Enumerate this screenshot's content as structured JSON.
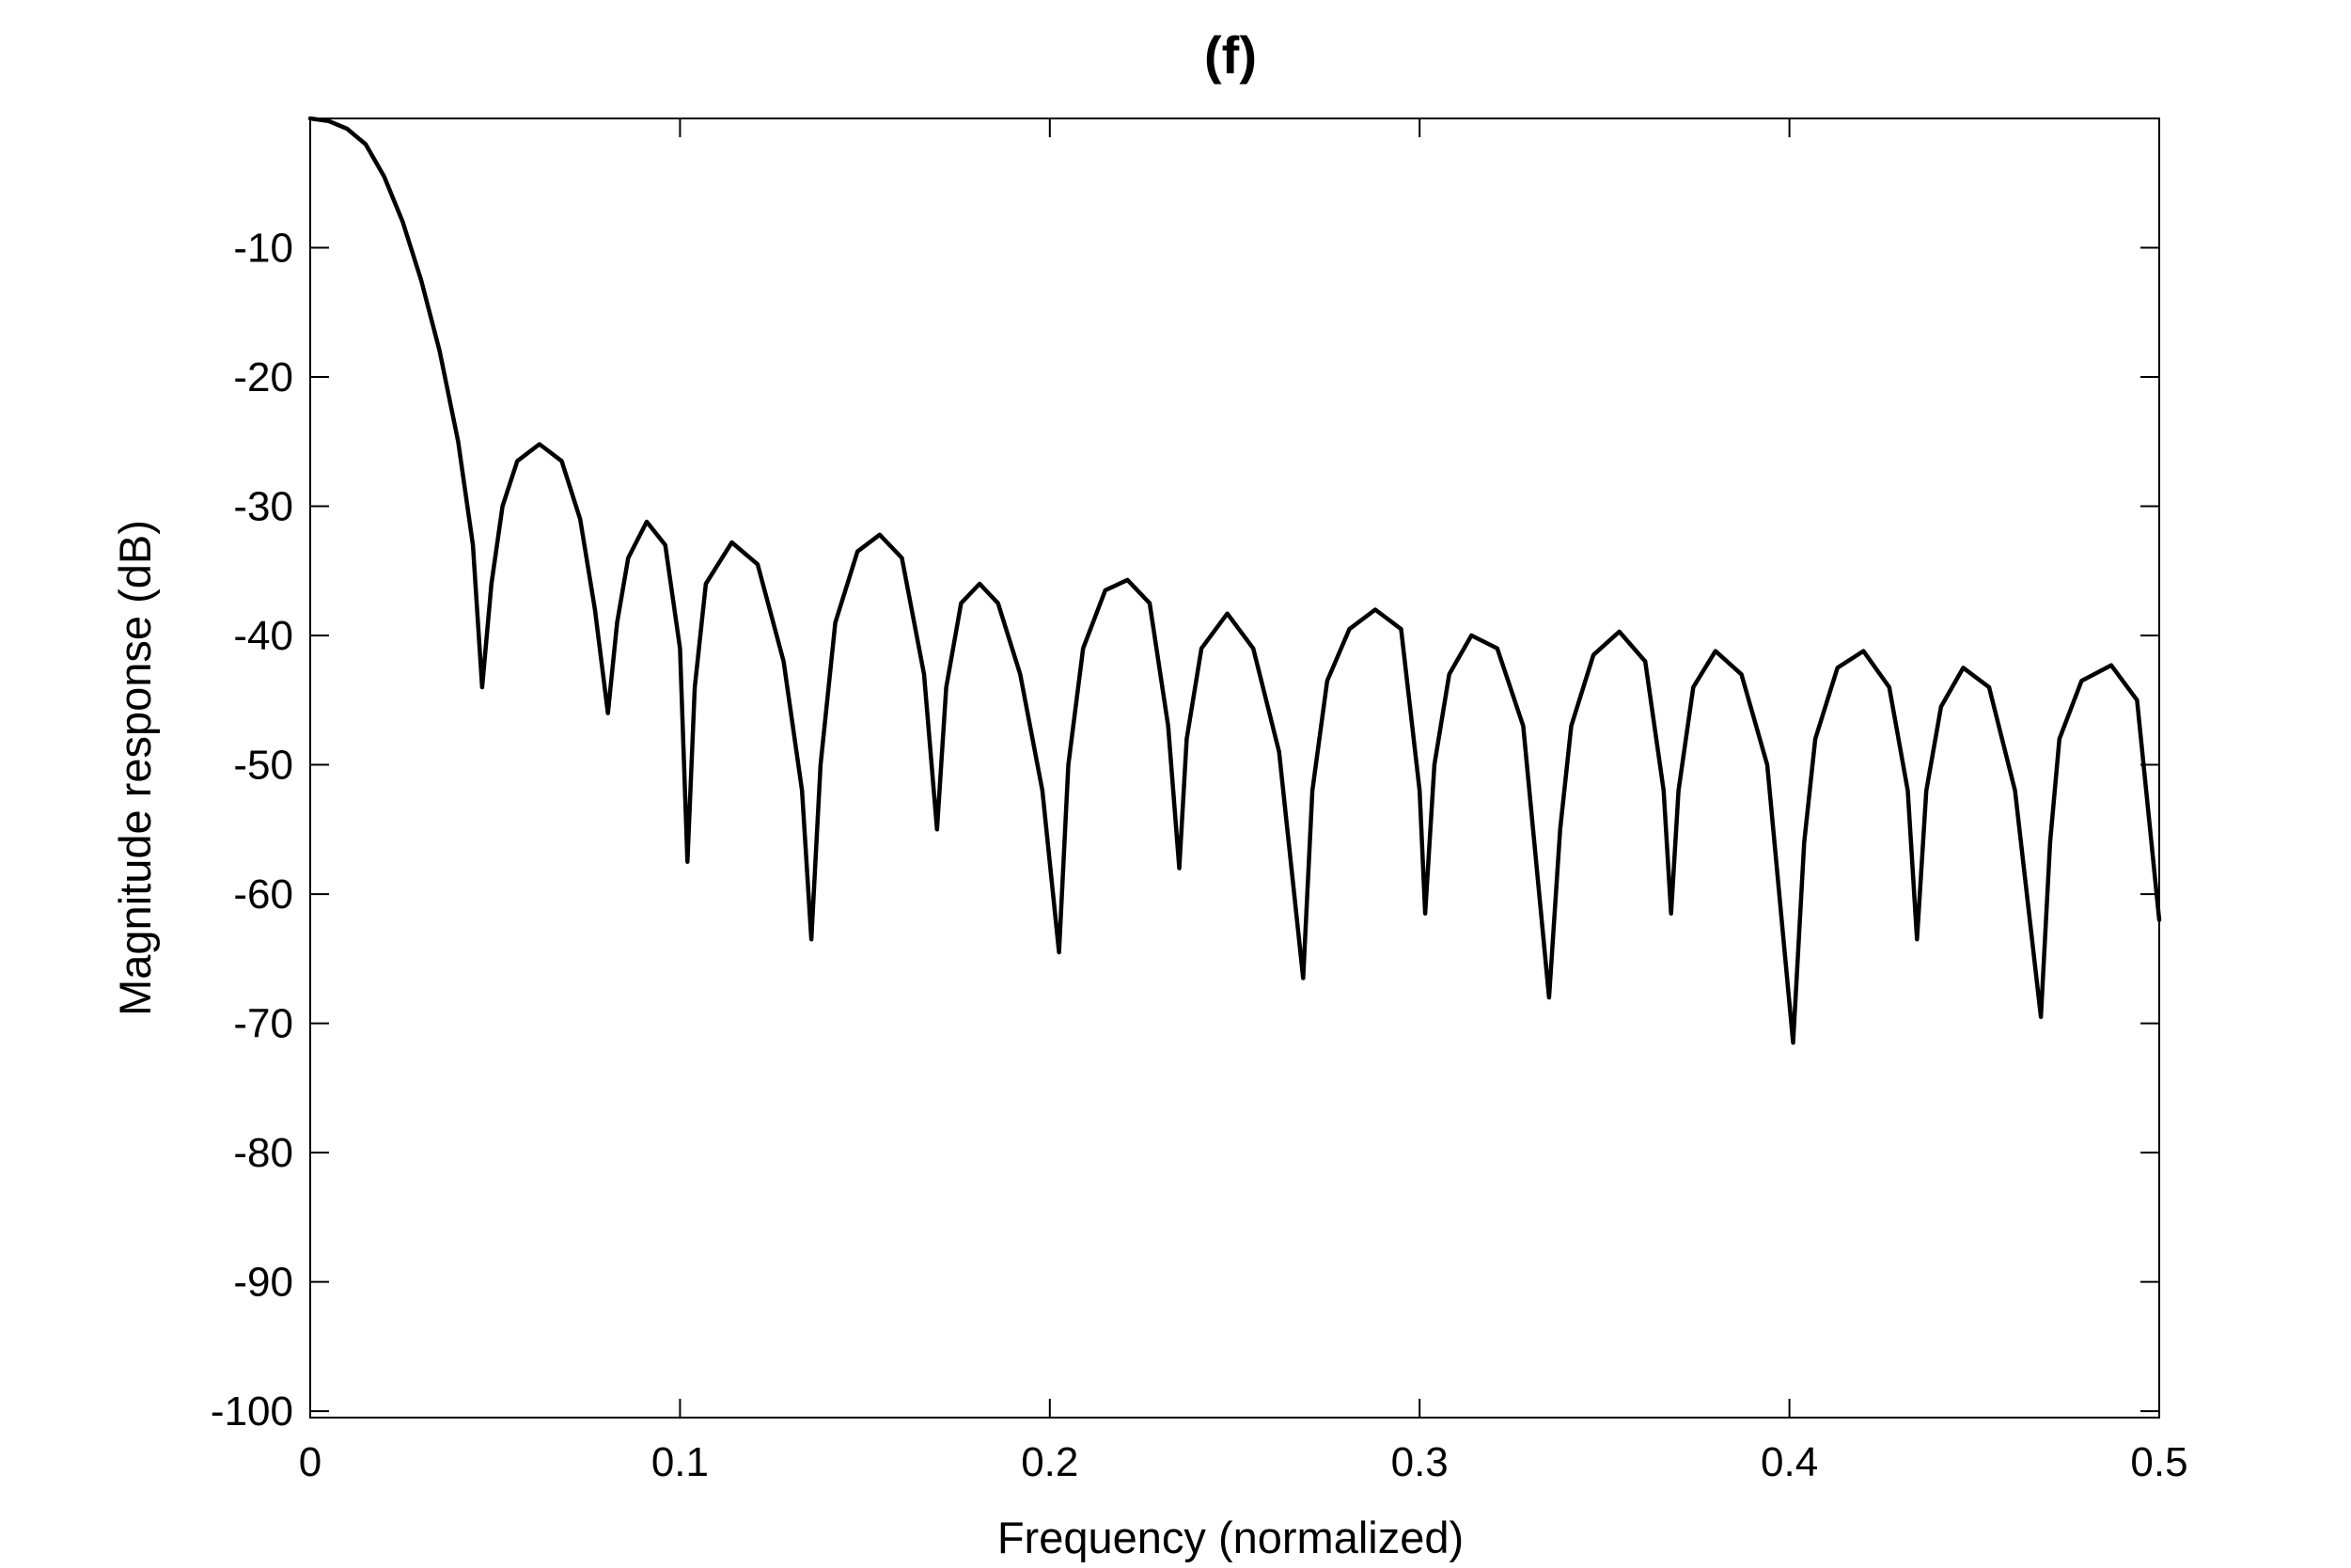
{
  "chart_data": {
    "type": "line",
    "title": "(f)",
    "xlabel": "Frequency (normalized)",
    "ylabel": "Magnitude response (dB)",
    "xlim": [
      0,
      0.5
    ],
    "ylim": [
      -100.5,
      0
    ],
    "xticks": [
      0,
      0.1,
      0.2,
      0.3,
      0.4,
      0.5
    ],
    "xtick_labels": [
      "0",
      "0.1",
      "0.2",
      "0.3",
      "0.4",
      "0.5"
    ],
    "yticks": [
      -10,
      -20,
      -30,
      -40,
      -50,
      -60,
      -70,
      -80,
      -90,
      -100
    ],
    "ytick_labels": [
      "-10",
      "-20",
      "-30",
      "-40",
      "-50",
      "-60",
      "-70",
      "-80",
      "-90",
      "-100"
    ],
    "grid": false,
    "line_color": "#000000",
    "series": [
      {
        "x": [
          0,
          0.005,
          0.01,
          0.015,
          0.02,
          0.025,
          0.03,
          0.035,
          0.04,
          0.044,
          0.0465,
          0.049,
          0.052,
          0.056,
          0.062,
          0.068,
          0.073,
          0.077,
          0.0805,
          0.083,
          0.086,
          0.091,
          0.096,
          0.1,
          0.102,
          0.104,
          0.107,
          0.114,
          0.121,
          0.128,
          0.133,
          0.1355,
          0.138,
          0.142,
          0.148,
          0.154,
          0.16,
          0.166,
          0.1695,
          0.172,
          0.176,
          0.181,
          0.186,
          0.192,
          0.198,
          0.2025,
          0.205,
          0.209,
          0.215,
          0.221,
          0.227,
          0.232,
          0.235,
          0.237,
          0.241,
          0.248,
          0.255,
          0.262,
          0.2685,
          0.271,
          0.275,
          0.281,
          0.288,
          0.295,
          0.3,
          0.3015,
          0.304,
          0.308,
          0.314,
          0.321,
          0.328,
          0.335,
          0.338,
          0.341,
          0.347,
          0.354,
          0.361,
          0.366,
          0.368,
          0.37,
          0.374,
          0.38,
          0.387,
          0.394,
          0.401,
          0.404,
          0.407,
          0.413,
          0.42,
          0.427,
          0.432,
          0.4345,
          0.437,
          0.441,
          0.447,
          0.454,
          0.461,
          0.468,
          0.4705,
          0.473,
          0.479,
          0.487,
          0.494,
          0.5
        ],
        "y": [
          0,
          -0.2,
          -0.8,
          -2,
          -4.5,
          -8,
          -12.5,
          -18,
          -25,
          -33,
          -44,
          -36,
          -30,
          -26.5,
          -25.2,
          -26.5,
          -31,
          -38,
          -46,
          -39,
          -34,
          -31.2,
          -33,
          -41,
          -57.5,
          -44,
          -36,
          -32.8,
          -34.5,
          -42,
          -52,
          -63.5,
          -50,
          -39,
          -33.5,
          -32.2,
          -34,
          -43,
          -55,
          -44,
          -37.5,
          -36,
          -37.5,
          -43,
          -52,
          -64.5,
          -50,
          -41,
          -36.5,
          -35.7,
          -37.5,
          -47,
          -58,
          -48,
          -41,
          -38.3,
          -41,
          -49,
          -66.5,
          -52,
          -43.5,
          -39.5,
          -38,
          -39.5,
          -52,
          -61.5,
          -50,
          -43,
          -40,
          -41,
          -47,
          -68,
          -55,
          -47,
          -41.5,
          -39.7,
          -42,
          -52,
          -61.5,
          -52,
          -44,
          -41.2,
          -43,
          -50,
          -71.5,
          -56,
          -48,
          -42.5,
          -41.2,
          -44,
          -52,
          -63.5,
          -52,
          -45.5,
          -42.5,
          -44,
          -52,
          -69.5,
          -56,
          -48,
          -43.5,
          -42.3,
          -45,
          -62
        ]
      }
    ]
  }
}
